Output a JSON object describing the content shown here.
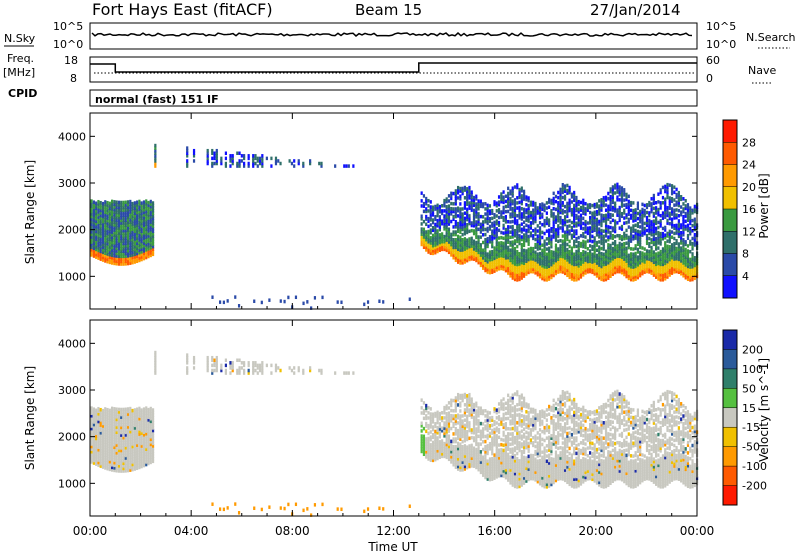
{
  "header": {
    "title": "Fort Hays East (fitACF)",
    "beam": "Beam 15",
    "date": "27/Jan/2014"
  },
  "top_panels": {
    "nsky_label": "N.Sky",
    "nsearch_label": "N.Search",
    "noise_ticks_left": [
      "10^5",
      "10^0"
    ],
    "noise_ticks_right": [
      "10^5",
      "10^0"
    ],
    "freq_label": "Freq.",
    "freq_unit": "[MHz]",
    "freq_ticks": [
      "18",
      "8"
    ],
    "nave_label": "Nave",
    "nave_ticks": [
      "60",
      "0"
    ],
    "cpid_label": "CPID",
    "cpid_text": "normal (fast) 151 IF"
  },
  "power_colorbar": {
    "label": "Power [dB]",
    "ticks": [
      "28",
      "24",
      "20",
      "16",
      "12",
      "8",
      "4"
    ],
    "colors": [
      "#ff1a00",
      "#ff5a00",
      "#ff9a00",
      "#f0c000",
      "#3a9a40",
      "#2f6f6a",
      "#2a4aa8",
      "#1010ff"
    ]
  },
  "velocity_colorbar": {
    "label": "Velocity [m s^-1]",
    "ticks": [
      "200",
      "100",
      "50",
      "15",
      "-15",
      "-50",
      "-100",
      "-200"
    ],
    "colors": [
      "#1a2aa8",
      "#2a5a9a",
      "#2f7f6a",
      "#55c040",
      "#c8c8c0",
      "#f0c000",
      "#ff9a00",
      "#ff5a00",
      "#ff1a00"
    ]
  },
  "x_axis": {
    "label": "Time UT",
    "ticks": [
      "00:00",
      "04:00",
      "08:00",
      "12:00",
      "16:00",
      "20:00",
      "00:00"
    ]
  },
  "chart_data": [
    {
      "type": "heatmap",
      "title": "Power",
      "ylabel": "Slant Range [km]",
      "xlabel": "Time UT",
      "xlim": [
        0,
        24
      ],
      "ylim": [
        300,
        4500
      ],
      "y_ticks": [
        1000,
        2000,
        3000,
        4000
      ],
      "x_ticks_hours": [
        0,
        4,
        8,
        12,
        16,
        20,
        24
      ],
      "colorbar_range_dB": [
        0,
        32
      ]
    },
    {
      "type": "heatmap",
      "title": "Velocity",
      "ylabel": "Slant Range [km]",
      "xlabel": "Time UT",
      "xlim": [
        0,
        24
      ],
      "ylim": [
        300,
        4500
      ],
      "y_ticks": [
        1000,
        2000,
        3000,
        4000
      ],
      "x_ticks_hours": [
        0,
        4,
        8,
        12,
        16,
        20,
        24
      ],
      "colorbar_range_ms": [
        -250,
        250
      ]
    }
  ]
}
